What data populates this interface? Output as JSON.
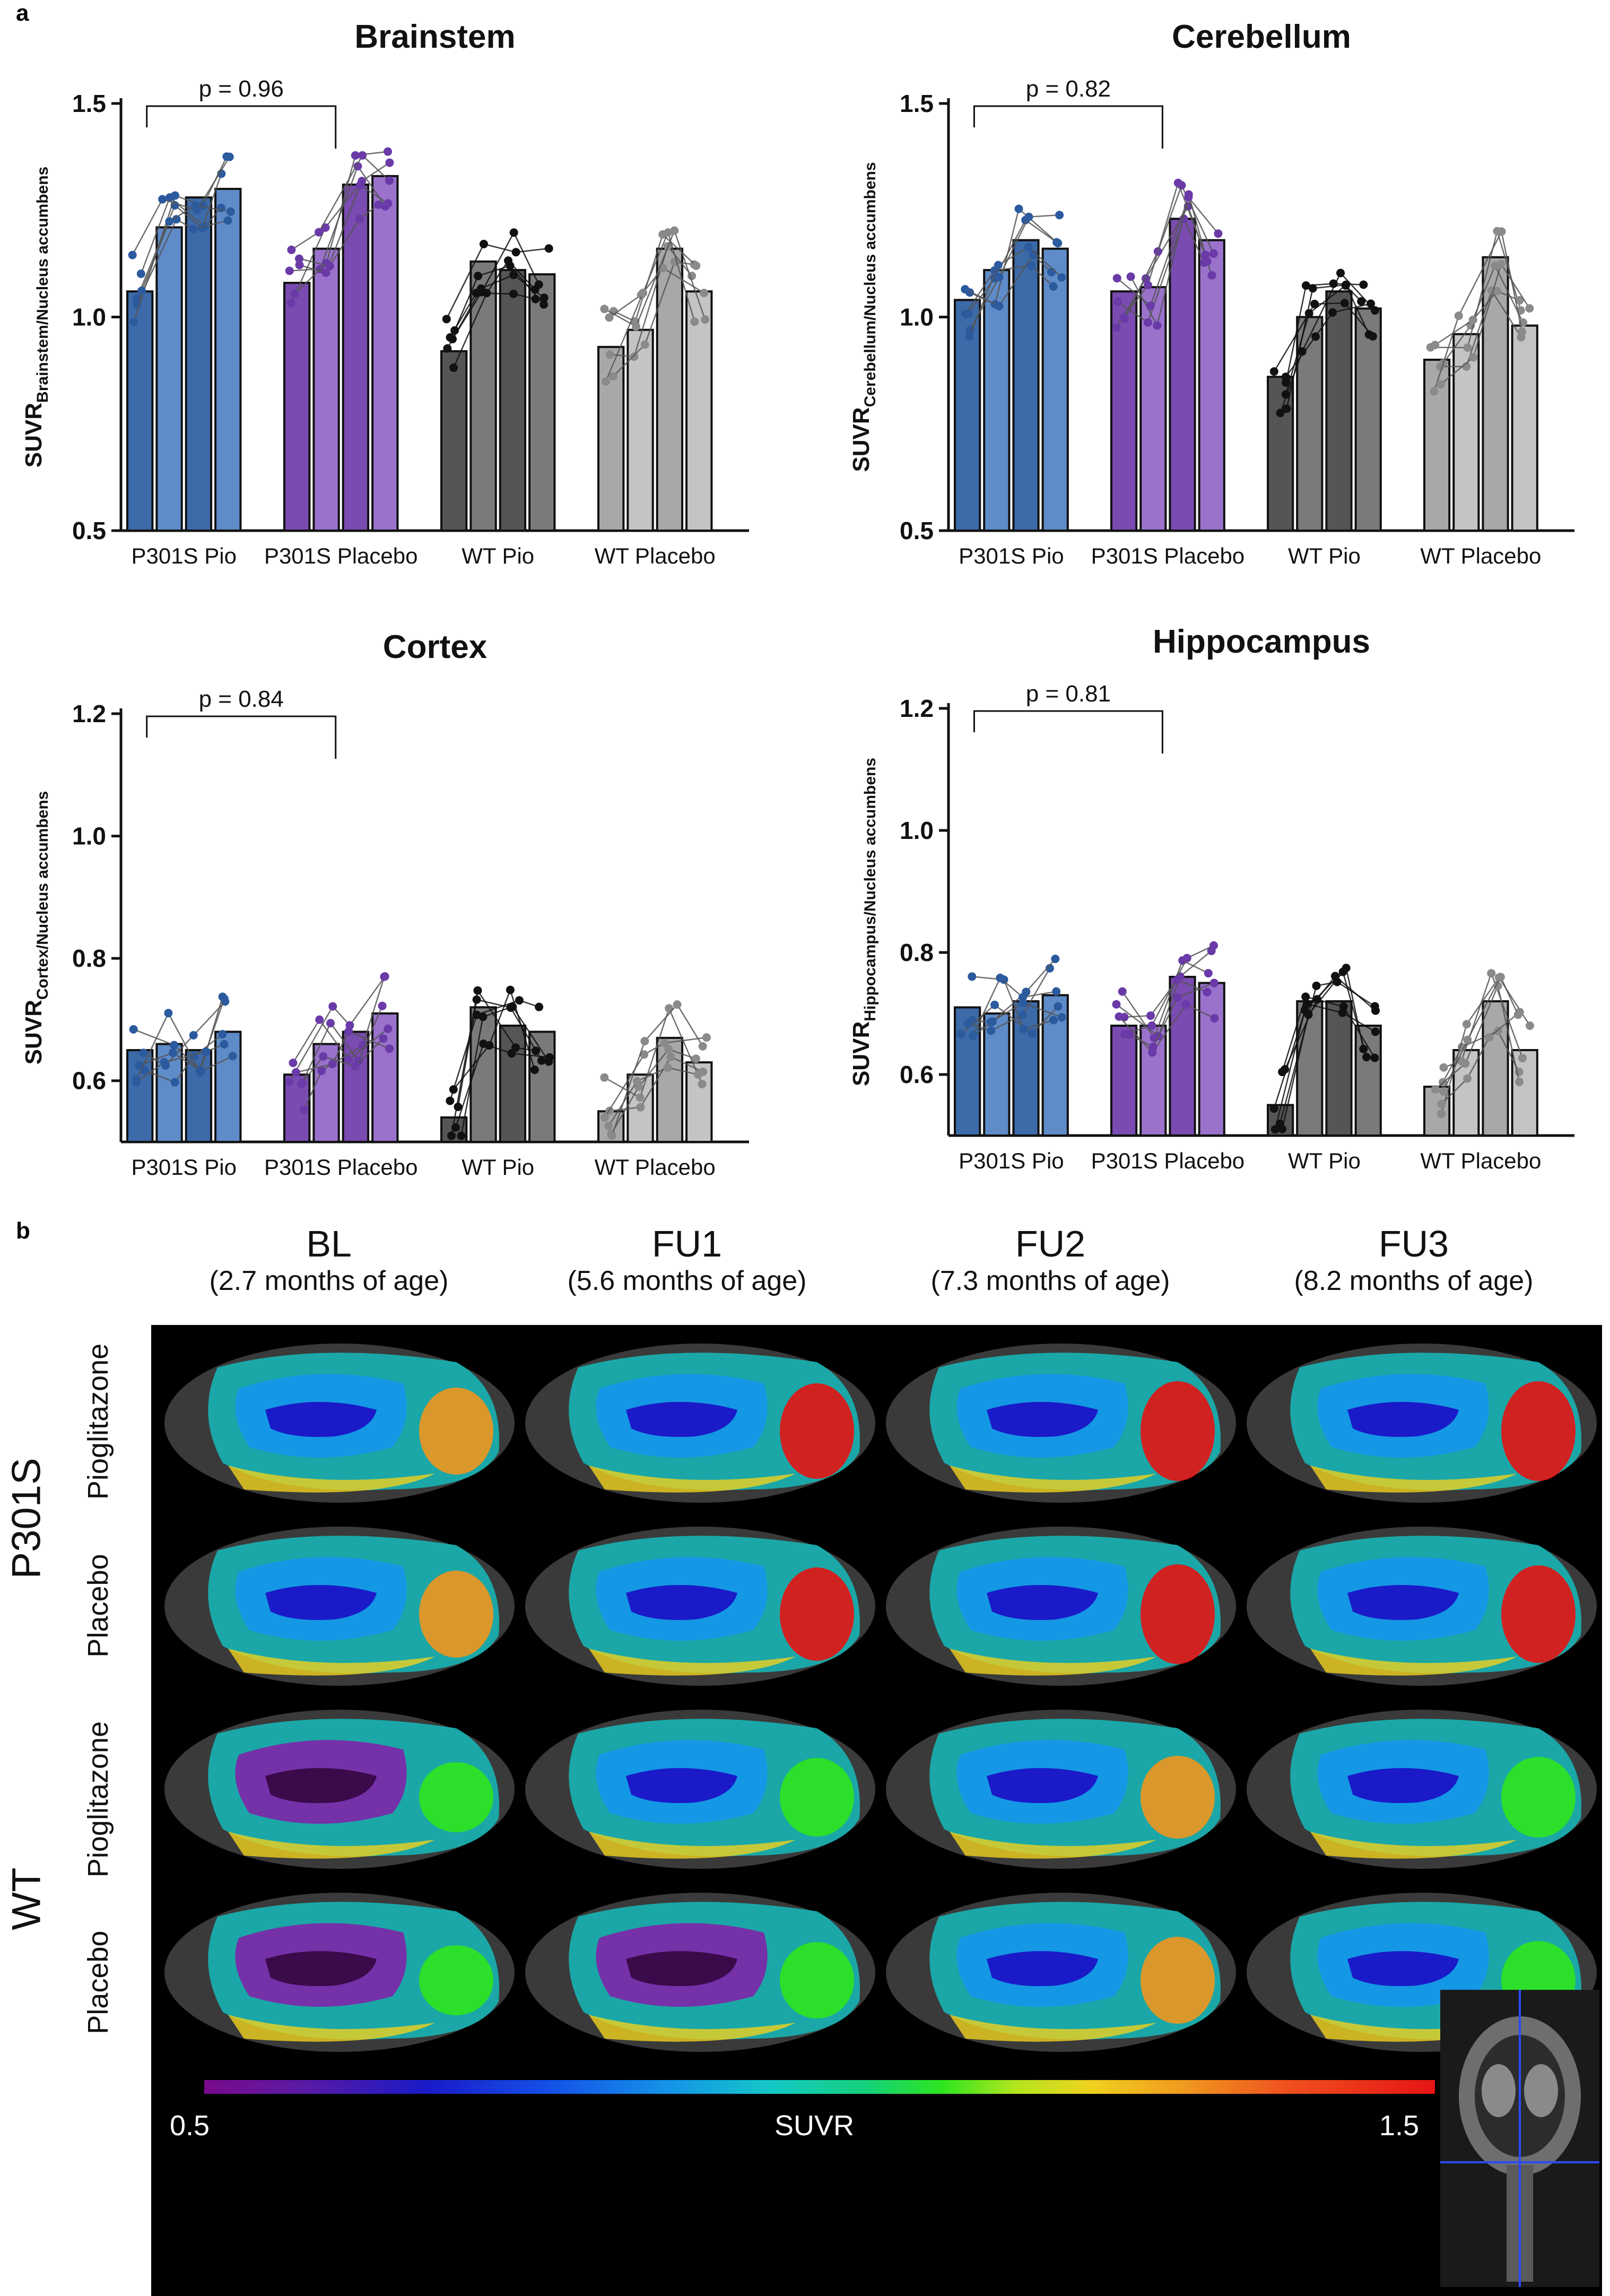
{
  "panel_a_label": "a",
  "panel_b_label": "b",
  "colors": {
    "p301s_pio": "#3d6aa8",
    "p301s_pio_dot": "#2b5a9e",
    "p301s_placebo": "#7a4bb0",
    "p301s_placebo_dot": "#6a3aa8",
    "wt_pio": "#555555",
    "wt_pio_dot": "#111111",
    "wt_placebo": "#a8a8a8",
    "wt_placebo_dot": "#8a8a8a"
  },
  "chart_data": [
    {
      "type": "bar",
      "title": "Brainstem",
      "ylabel_main": "SUVR",
      "ylabel_sub": "Brainstem/Nucleus accumbens",
      "ylim": [
        0.5,
        1.5
      ],
      "yticks": [
        "0.5",
        "1.0",
        "1.5"
      ],
      "categories": [
        "P301S Pio",
        "P301S Placebo",
        "WT Pio",
        "WT Placebo"
      ],
      "timepoints": [
        "BL",
        "FU1",
        "FU2",
        "FU3"
      ],
      "series": [
        {
          "group": "P301S Pio",
          "values": [
            1.06,
            1.21,
            1.28,
            1.3
          ]
        },
        {
          "group": "P301S Placebo",
          "values": [
            1.08,
            1.16,
            1.31,
            1.33
          ]
        },
        {
          "group": "WT Pio",
          "values": [
            0.92,
            1.13,
            1.11,
            1.1
          ]
        },
        {
          "group": "WT Placebo",
          "values": [
            0.93,
            0.97,
            1.16,
            1.06
          ]
        }
      ],
      "annotation": "p = 0.96"
    },
    {
      "type": "bar",
      "title": "Cerebellum",
      "ylabel_main": "SUVR",
      "ylabel_sub": "Cerebellum/Nucleus accumbens",
      "ylim": [
        0.5,
        1.5
      ],
      "yticks": [
        "0.5",
        "1.0",
        "1.5"
      ],
      "categories": [
        "P301S Pio",
        "P301S Placebo",
        "WT Pio",
        "WT Placebo"
      ],
      "timepoints": [
        "BL",
        "FU1",
        "FU2",
        "FU3"
      ],
      "series": [
        {
          "group": "P301S Pio",
          "values": [
            1.04,
            1.11,
            1.18,
            1.16
          ]
        },
        {
          "group": "P301S Placebo",
          "values": [
            1.06,
            1.07,
            1.23,
            1.18
          ]
        },
        {
          "group": "WT Pio",
          "values": [
            0.86,
            1.0,
            1.06,
            1.02
          ]
        },
        {
          "group": "WT Placebo",
          "values": [
            0.9,
            0.96,
            1.14,
            0.98
          ]
        }
      ],
      "annotation": "p = 0.82"
    },
    {
      "type": "bar",
      "title": "Cortex",
      "ylabel_main": "SUVR",
      "ylabel_sub": "Cortex/Nucleus accumbens",
      "ylim": [
        0.5,
        1.2
      ],
      "yticks": [
        "0.6",
        "0.8",
        "1.0",
        "1.2"
      ],
      "categories": [
        "P301S Pio",
        "P301S Placebo",
        "WT Pio",
        "WT Placebo"
      ],
      "timepoints": [
        "BL",
        "FU1",
        "FU2",
        "FU3"
      ],
      "series": [
        {
          "group": "P301S Pio",
          "values": [
            0.65,
            0.66,
            0.65,
            0.68
          ]
        },
        {
          "group": "P301S Placebo",
          "values": [
            0.61,
            0.66,
            0.68,
            0.71
          ]
        },
        {
          "group": "WT Pio",
          "values": [
            0.54,
            0.72,
            0.69,
            0.68
          ]
        },
        {
          "group": "WT Placebo",
          "values": [
            0.55,
            0.61,
            0.67,
            0.63
          ]
        }
      ],
      "annotation": "p = 0.84"
    },
    {
      "type": "bar",
      "title": "Hippocampus",
      "ylabel_main": "SUVR",
      "ylabel_sub": "Hippocampus/Nucleus accumbens",
      "ylim": [
        0.5,
        1.2
      ],
      "yticks": [
        "0.6",
        "0.8",
        "1.0",
        "1.2"
      ],
      "categories": [
        "P301S Pio",
        "P301S Placebo",
        "WT Pio",
        "WT Placebo"
      ],
      "timepoints": [
        "BL",
        "FU1",
        "FU2",
        "FU3"
      ],
      "series": [
        {
          "group": "P301S Pio",
          "values": [
            0.71,
            0.7,
            0.72,
            0.73
          ]
        },
        {
          "group": "P301S Placebo",
          "values": [
            0.68,
            0.68,
            0.76,
            0.75
          ]
        },
        {
          "group": "WT Pio",
          "values": [
            0.55,
            0.72,
            0.72,
            0.68
          ]
        },
        {
          "group": "WT Placebo",
          "values": [
            0.58,
            0.64,
            0.72,
            0.64
          ]
        }
      ],
      "annotation": "p = 0.81"
    }
  ],
  "panel_b": {
    "columns": [
      {
        "label": "BL",
        "sub": "(2.7 months of age)"
      },
      {
        "label": "FU1",
        "sub": "(5.6 months of age)"
      },
      {
        "label": "FU2",
        "sub": "(7.3 months of age)"
      },
      {
        "label": "FU3",
        "sub": "(8.2 months of age)"
      }
    ],
    "groups": [
      "P301S",
      "WT"
    ],
    "rows": [
      "Pioglitazone",
      "Placebo",
      "Pioglitazone",
      "Placebo"
    ],
    "colorbar": {
      "min": "0.5",
      "max": "1.5",
      "label": "SUVR"
    }
  }
}
